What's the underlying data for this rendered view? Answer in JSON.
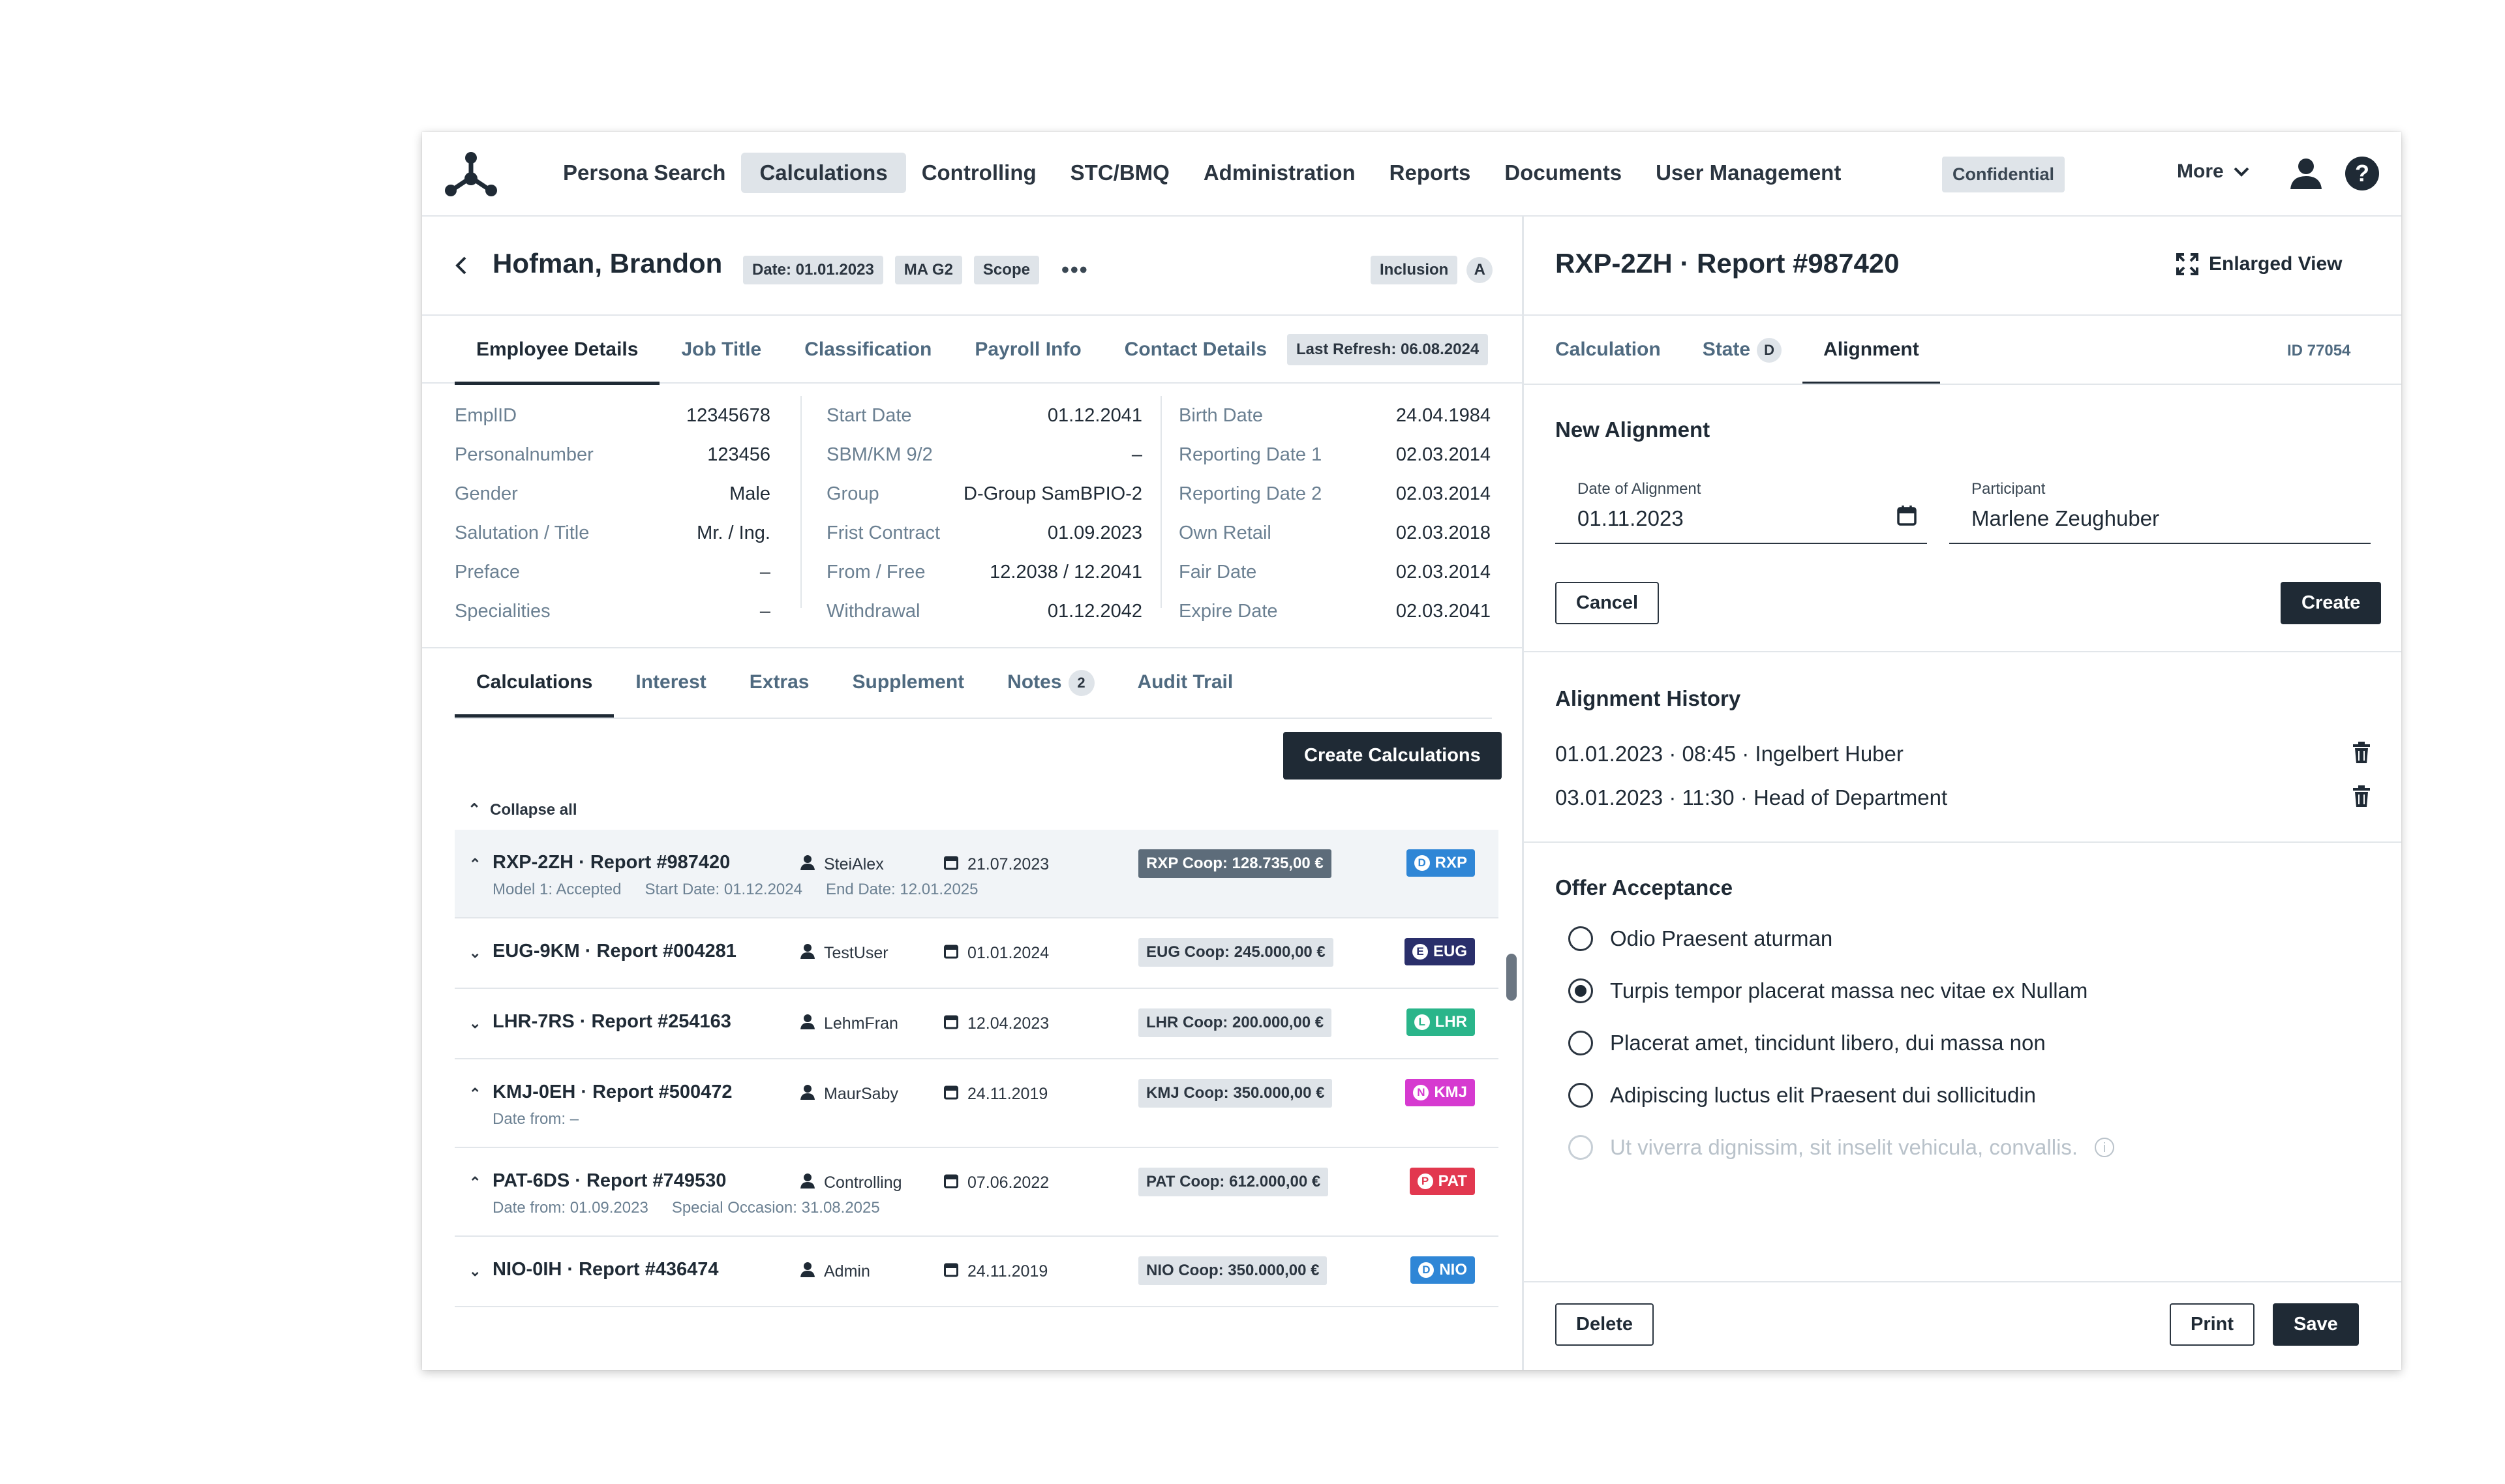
{
  "nav": {
    "items": [
      "Persona Search",
      "Calculations",
      "Controlling",
      "STC/BMQ",
      "Administration",
      "Reports",
      "Documents",
      "User Management"
    ],
    "active_index": 1,
    "confidential": "Confidential",
    "more": "More"
  },
  "employee": {
    "name": "Hofman, Brandon",
    "chips": [
      "Date: 01.01.2023",
      "MA G2",
      "Scope"
    ],
    "more_dots": "•••",
    "inclusion": "Inclusion",
    "inclusion_badge": "A",
    "tabs": [
      "Employee Details",
      "Job Title",
      "Classification",
      "Payroll Info",
      "Contact Details"
    ],
    "last_refresh": "Last Refresh: 06.08.2024",
    "details": {
      "col1": [
        {
          "label": "EmplID",
          "value": "12345678"
        },
        {
          "label": "Personalnumber",
          "value": "123456"
        },
        {
          "label": "Gender",
          "value": "Male"
        },
        {
          "label": "Salutation / Title",
          "value": "Mr. / Ing."
        },
        {
          "label": "Preface",
          "value": "–"
        },
        {
          "label": "Specialities",
          "value": "–"
        }
      ],
      "col2": [
        {
          "label": "Start Date",
          "value": "01.12.2041"
        },
        {
          "label": "SBM/KM 9/2",
          "value": "–"
        },
        {
          "label": "Group",
          "value": "D-Group SamBPIO-2"
        },
        {
          "label": "Frist Contract",
          "value": "01.09.2023"
        },
        {
          "label": "From / Free",
          "value": "12.2038 / 12.2041"
        },
        {
          "label": "Withdrawal",
          "value": "01.12.2042"
        }
      ],
      "col3": [
        {
          "label": "Birth Date",
          "value": "24.04.1984"
        },
        {
          "label": "Reporting Date 1",
          "value": "02.03.2014"
        },
        {
          "label": "Reporting Date 2",
          "value": "02.03.2014"
        },
        {
          "label": "Own Retail",
          "value": "02.03.2018"
        },
        {
          "label": "Fair Date",
          "value": "02.03.2014"
        },
        {
          "label": "Expire Date",
          "value": "02.03.2041"
        }
      ]
    }
  },
  "calc_tabs": {
    "items": [
      "Calculations",
      "Interest",
      "Extras",
      "Supplement",
      "Notes",
      "Audit Trail"
    ],
    "notes_count": "2"
  },
  "create_calculations": "Create Calculations",
  "collapse_all": "Collapse all",
  "reports": [
    {
      "title": "RXP-2ZH · Report #987420",
      "user": "SteiAlex",
      "date": "21.07.2023",
      "coop": "RXP Coop: 128.735,00 €",
      "tag": "RXP",
      "tag_letter": "D",
      "tag_color": "#2f86d6",
      "expanded": true,
      "sub": [
        "Model 1: Accepted",
        "Start Date: 01.12.2024",
        "End Date: 12.01.2025"
      ]
    },
    {
      "title": "EUG-9KM · Report #004281",
      "user": "TestUser",
      "date": "01.01.2024",
      "coop": "EUG Coop: 245.000,00 €",
      "tag": "EUG",
      "tag_letter": "E",
      "tag_color": "#2a2f6b",
      "expanded": false,
      "sub": []
    },
    {
      "title": "LHR-7RS · Report #254163",
      "user": "LehmFran",
      "date": "12.04.2023",
      "coop": "LHR Coop: 200.000,00 €",
      "tag": "LHR",
      "tag_letter": "L",
      "tag_color": "#2ab58a",
      "expanded": false,
      "sub": []
    },
    {
      "title": "KMJ-0EH · Report #500472",
      "user": "MaurSaby",
      "date": "24.11.2019",
      "coop": "KMJ Coop: 350.000,00 €",
      "tag": "KMJ",
      "tag_letter": "N",
      "tag_color": "#d63ad0",
      "expanded": true,
      "sub": [
        "Date from: –"
      ]
    },
    {
      "title": "PAT-6DS · Report #749530",
      "user": "Controlling",
      "date": "07.06.2022",
      "coop": "PAT Coop: 612.000,00 €",
      "tag": "PAT",
      "tag_letter": "P",
      "tag_color": "#e2384f",
      "expanded": true,
      "sub": [
        "Date from: 01.09.2023",
        "Special Occasion: 31.08.2025"
      ]
    },
    {
      "title": "NIO-0IH · Report #436474",
      "user": "Admin",
      "date": "24.11.2019",
      "coop": "NIO Coop: 350.000,00 €",
      "tag": "NIO",
      "tag_letter": "D",
      "tag_color": "#2f86d6",
      "expanded": false,
      "sub": []
    }
  ],
  "detail": {
    "title": "RXP-2ZH · Report #987420",
    "enlarged_view": "Enlarged View",
    "tabs": [
      "Calculation",
      "State",
      "Alignment"
    ],
    "state_badge": "D",
    "id": "ID 77054",
    "new_alignment": {
      "title": "New Alignment",
      "date_label": "Date of Alignment",
      "date_value": "01.11.2023",
      "participant_label": "Participant",
      "participant_value": "Marlene Zeughuber",
      "cancel": "Cancel",
      "create": "Create"
    },
    "history": {
      "title": "Alignment History",
      "items": [
        "01.01.2023 · 08:45 · Ingelbert Huber",
        "03.01.2023 · 11:30 · Head of Department"
      ]
    },
    "offer": {
      "title": "Offer Acceptance",
      "options": [
        "Odio Praesent aturman",
        "Turpis tempor placerat massa nec vitae ex Nullam",
        "Placerat amet, tincidunt libero, dui massa non",
        "Adipiscing luctus elit Praesent dui sollicitudin",
        "Ut viverra dignissim, sit inselit vehicula, convallis."
      ],
      "selected_index": 1,
      "disabled_index": 4
    },
    "footer": {
      "delete": "Delete",
      "print": "Print",
      "save": "Save"
    }
  }
}
